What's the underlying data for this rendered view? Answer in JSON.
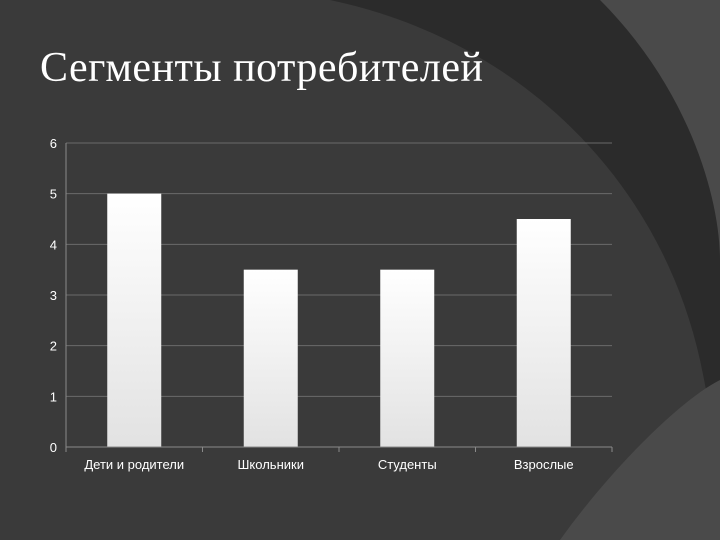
{
  "slide": {
    "title": "Сегменты потребителей",
    "colors": {
      "background": "#3a3a3a",
      "swirl_dark": "#2b2b2b",
      "swirl_light": "#4a4a4a",
      "text": "#ffffff",
      "bar_top": "#ffffff",
      "bar_bottom": "#e2e2e2",
      "grid": "#6a6a6a",
      "axis": "#8a8a8a"
    }
  },
  "chart_data": {
    "type": "bar",
    "categories": [
      "Дети и родители",
      "Школьники",
      "Студенты",
      "Взрослые"
    ],
    "values": [
      5,
      3.5,
      3.5,
      4.5
    ],
    "ylim": [
      0,
      6
    ],
    "yticks": [
      "0",
      "1",
      "2",
      "3",
      "4",
      "5",
      "6"
    ],
    "grid": true,
    "legend": "none",
    "xlabel": "",
    "ylabel": ""
  }
}
